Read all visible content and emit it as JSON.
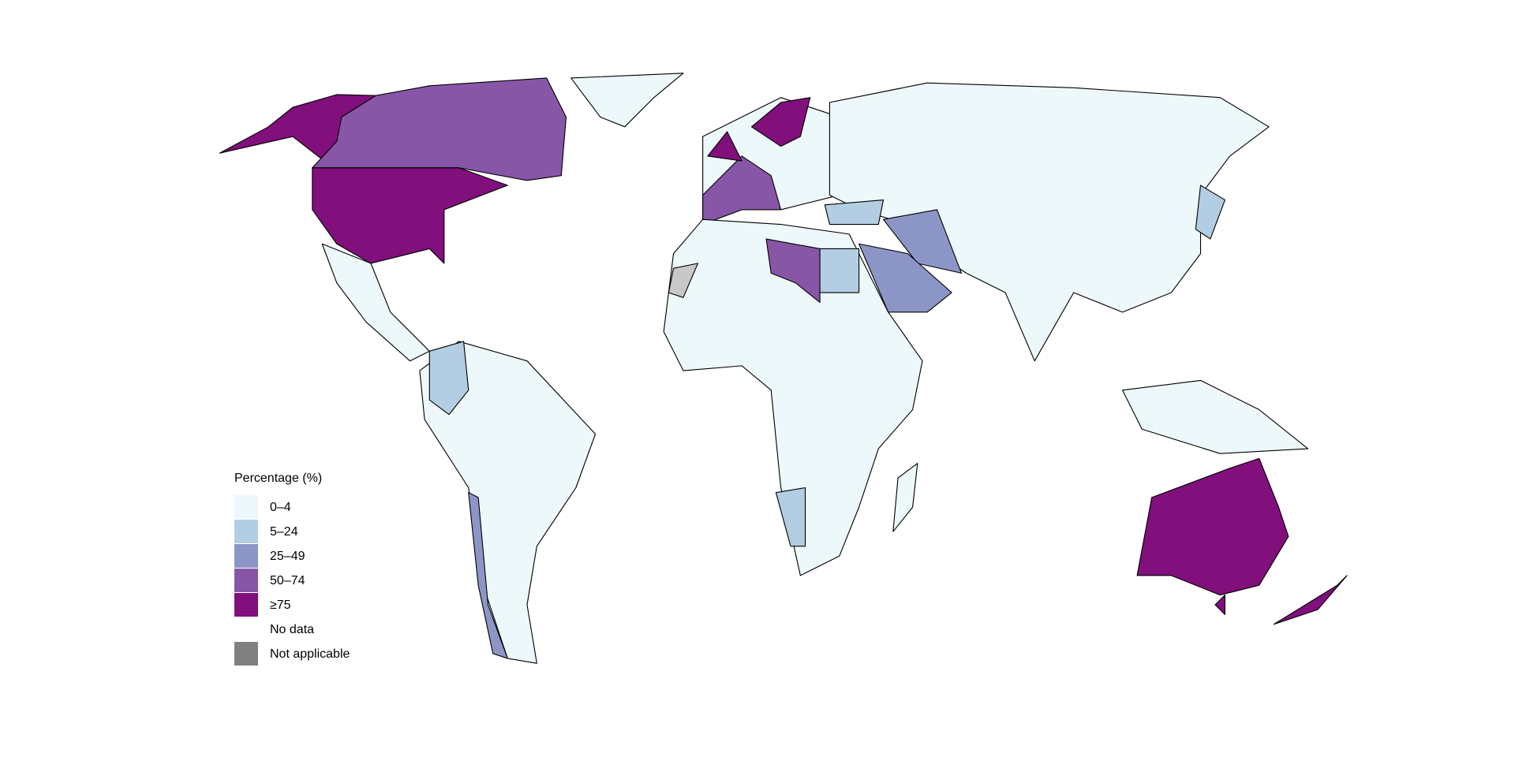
{
  "legend": {
    "title": "Percentage (%)",
    "items": [
      {
        "label": "0–4",
        "color": "#edf8fb"
      },
      {
        "label": "5–24",
        "color": "#b3cde3"
      },
      {
        "label": "25–49",
        "color": "#8c96c6"
      },
      {
        "label": "50–74",
        "color": "#8856a7"
      },
      {
        "label": "≥75",
        "color": "#810f7c"
      },
      {
        "label": "No data",
        "color": "#ffffff"
      },
      {
        "label": "Not applicable",
        "color": "#808080"
      }
    ]
  }
}
